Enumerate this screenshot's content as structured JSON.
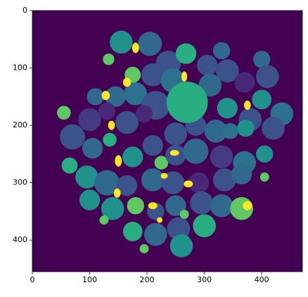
{
  "chart_data": {
    "type": "image",
    "xlim": [
      0,
      471
    ],
    "ylim": [
      455,
      0
    ],
    "xticks": [
      0,
      100,
      200,
      300,
      400
    ],
    "yticks": [
      0,
      100,
      200,
      300,
      400
    ]
  }
}
